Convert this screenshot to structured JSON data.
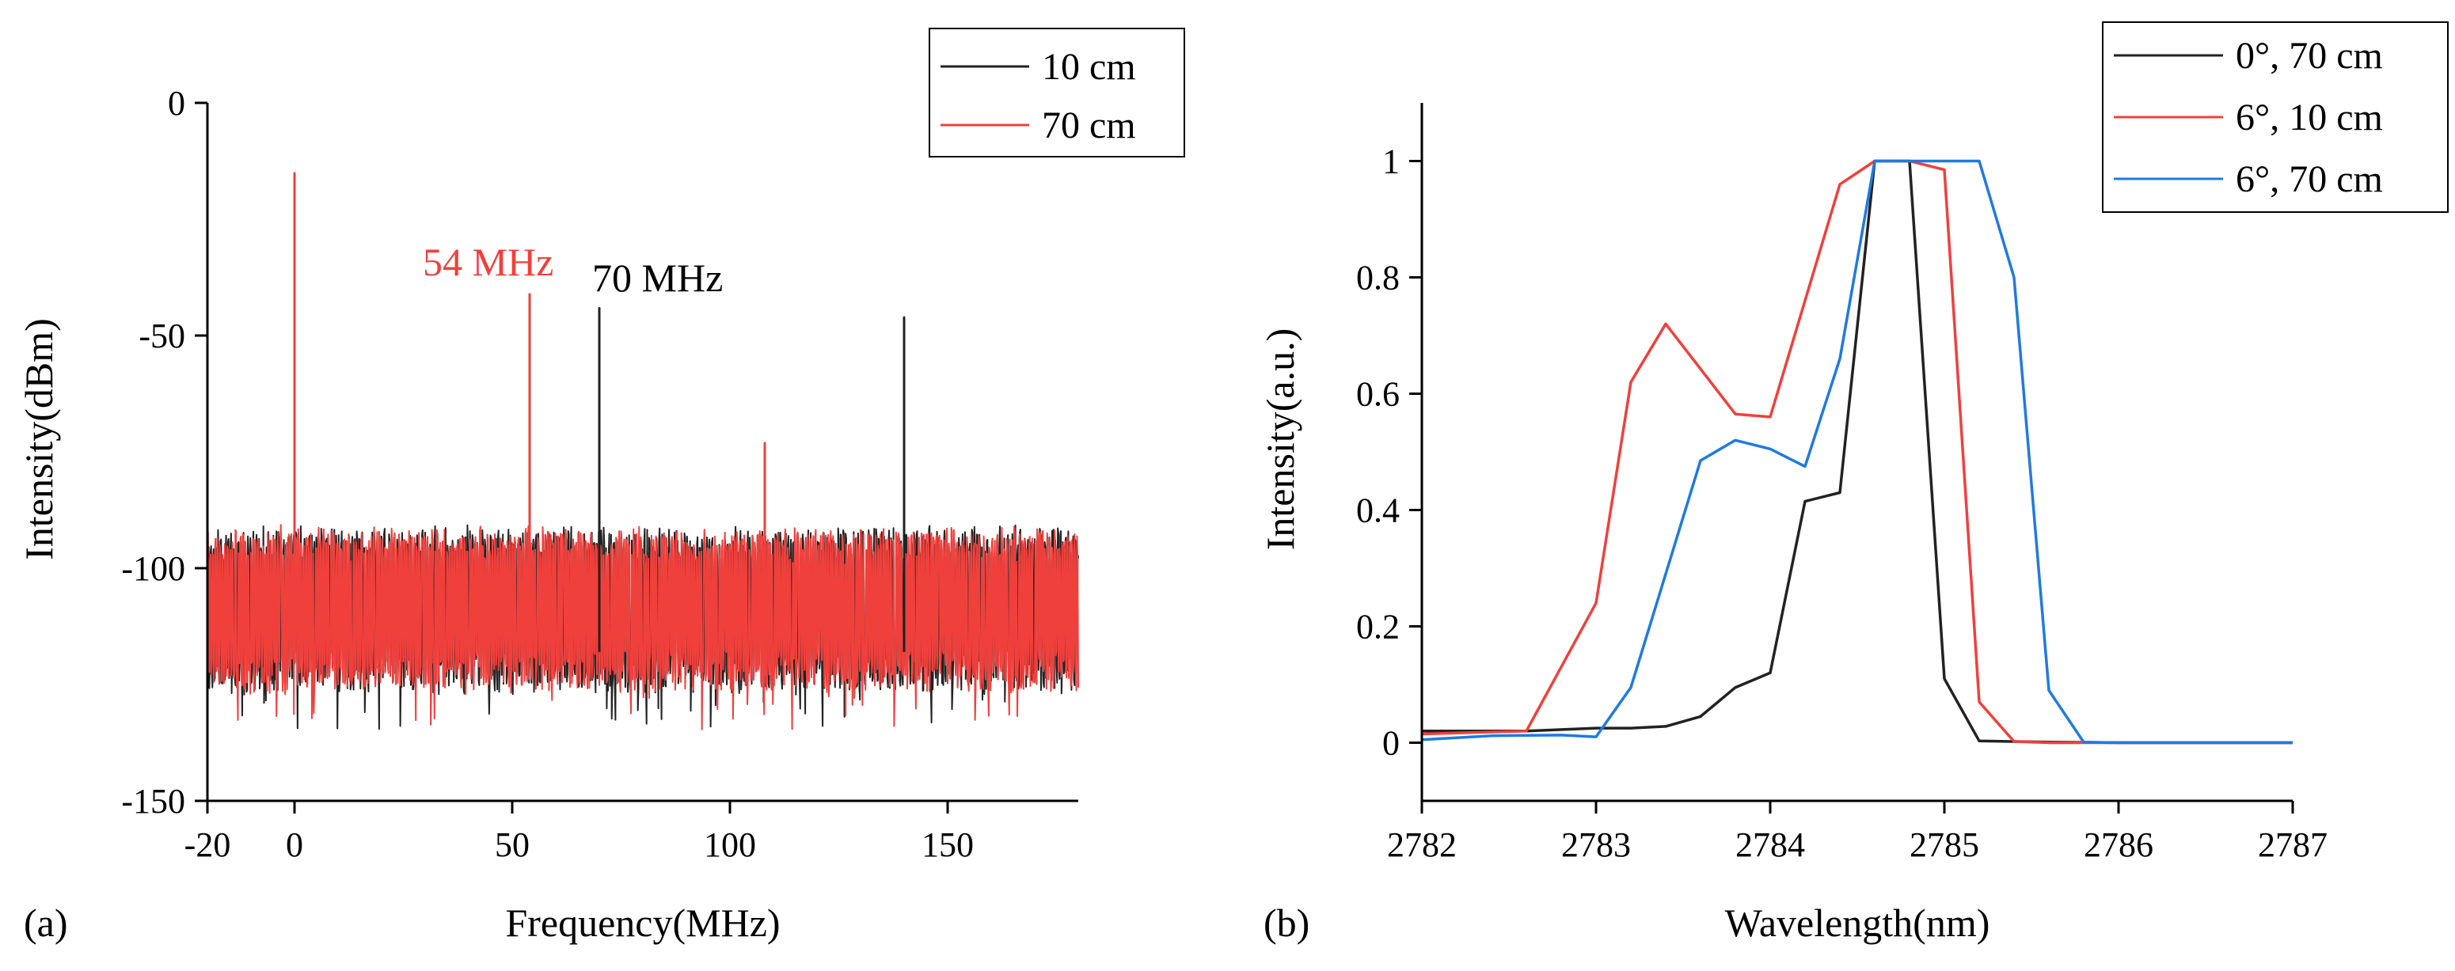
{
  "chart_data": [
    {
      "panel": "(a)",
      "type": "line",
      "title": "",
      "xlabel": "Frequency(MHz)",
      "ylabel": "Intensity(dBm)",
      "xlim": [
        -20,
        180
      ],
      "ylim": [
        -150,
        0
      ],
      "xticks": [
        -20,
        0,
        50,
        100,
        150
      ],
      "xtick_labels": [
        "-20",
        "0",
        "50",
        "100",
        "150"
      ],
      "yticks": [
        0,
        -50,
        -100,
        -150
      ],
      "ytick_labels": [
        "0",
        "-50",
        "-100",
        "-150"
      ],
      "grid": false,
      "legend_position": "top-right",
      "noise_floor": {
        "mean": -103,
        "band_low": -118,
        "band_high": -92
      },
      "series": [
        {
          "name": "10 cm",
          "color": "#222222",
          "peaks": [
            {
              "x": 0,
              "y": -36
            },
            {
              "x": 70,
              "y": -44
            },
            {
              "x": 140,
              "y": -46
            }
          ]
        },
        {
          "name": "70 cm",
          "color": "#f0403c",
          "peaks": [
            {
              "x": 0,
              "y": -15
            },
            {
              "x": 54,
              "y": -41
            },
            {
              "x": 108,
              "y": -73
            }
          ]
        }
      ],
      "annotations": [
        {
          "text": "54 MHz",
          "x": 54,
          "y": -35,
          "color": "#f0403c"
        },
        {
          "text": "70 MHz",
          "x": 70,
          "y": -38,
          "color": "#000000"
        }
      ]
    },
    {
      "panel": "(b)",
      "type": "line",
      "title": "",
      "xlabel": "Wavelength(nm)",
      "ylabel": "Intensity(a.u.)",
      "xlim": [
        2782,
        2787
      ],
      "ylim": [
        -0.1,
        1.1
      ],
      "xticks": [
        2782,
        2783,
        2784,
        2785,
        2786,
        2787
      ],
      "xtick_labels": [
        "2782",
        "2783",
        "2784",
        "2785",
        "2786",
        "2787"
      ],
      "yticks": [
        0,
        0.2,
        0.4,
        0.6,
        0.8,
        1
      ],
      "ytick_labels": [
        "0",
        "0.2",
        "0.4",
        "0.6",
        "0.8",
        "1"
      ],
      "grid": false,
      "legend_position": "top-right",
      "series": [
        {
          "name": "0°, 70 cm",
          "color": "#222222",
          "x": [
            2782,
            2782.6,
            2783,
            2783.2,
            2783.4,
            2783.6,
            2783.8,
            2784,
            2784.2,
            2784.4,
            2784.6,
            2784.8,
            2785,
            2785.2,
            2785.4,
            2785.6,
            2786,
            2787
          ],
          "y": [
            0.02,
            0.02,
            0.025,
            0.025,
            0.028,
            0.045,
            0.095,
            0.12,
            0.415,
            0.43,
            1.0,
            1.0,
            0.11,
            0.003,
            0.002,
            0.001,
            0.0,
            0.0
          ]
        },
        {
          "name": "6°, 10 cm",
          "color": "#f0403c",
          "x": [
            2782,
            2782.6,
            2783,
            2783.2,
            2783.4,
            2783.8,
            2784,
            2784.4,
            2784.6,
            2784.8,
            2785,
            2785.2,
            2785.4,
            2785.6,
            2786,
            2787
          ],
          "y": [
            0.015,
            0.02,
            0.24,
            0.62,
            0.72,
            0.565,
            0.56,
            0.96,
            1.0,
            1.0,
            0.985,
            0.07,
            0.002,
            0.0,
            0.0,
            0.0
          ]
        },
        {
          "name": "6°, 70 cm",
          "color": "#1f7ae0",
          "x": [
            2782,
            2782.4,
            2782.8,
            2783,
            2783.2,
            2783.6,
            2783.8,
            2784,
            2784.2,
            2784.4,
            2784.6,
            2784.8,
            2785,
            2785.2,
            2785.4,
            2785.6,
            2785.8,
            2786,
            2787
          ],
          "y": [
            0.005,
            0.012,
            0.013,
            0.01,
            0.095,
            0.485,
            0.52,
            0.505,
            0.475,
            0.66,
            1.0,
            1.0,
            1.0,
            1.0,
            0.8,
            0.09,
            0.001,
            0.0,
            0.0
          ]
        }
      ]
    }
  ]
}
